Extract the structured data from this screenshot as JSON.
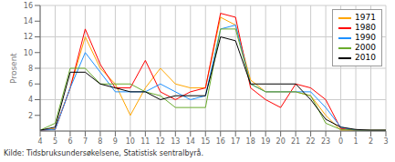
{
  "chart_data": {
    "type": "line",
    "ylabel": "Prosent",
    "source": "Kilde: Tidsbruksundersøkelsene, Statistisk sentralbyrå.",
    "categories": [
      "4",
      "5",
      "6",
      "7",
      "8",
      "9",
      "10",
      "11",
      "12",
      "13",
      "14",
      "15",
      "16",
      "17",
      "18",
      "19",
      "20",
      "21",
      "22",
      "23",
      "0",
      "1",
      "2",
      "3"
    ],
    "series": [
      {
        "name": "1971",
        "color": "#FFA500",
        "values": [
          0.1,
          0.3,
          5.5,
          12.0,
          8.0,
          6.0,
          2.0,
          5.5,
          8.0,
          6.0,
          5.5,
          5.5,
          14.5,
          13.5,
          6.5,
          5.0,
          5.0,
          5.0,
          4.5,
          2.0,
          0.1,
          0.1,
          0.1,
          0.1
        ]
      },
      {
        "name": "1980",
        "color": "#FF0000",
        "values": [
          0.1,
          0.2,
          5.5,
          13.0,
          8.5,
          5.5,
          5.5,
          9.0,
          5.0,
          4.0,
          5.0,
          5.5,
          15.0,
          14.5,
          5.5,
          4.0,
          3.0,
          6.0,
          5.5,
          4.0,
          0.3,
          0.1,
          0.1,
          0.1
        ]
      },
      {
        "name": "1990",
        "color": "#1E90FF",
        "values": [
          0.1,
          0.2,
          5.5,
          10.0,
          7.5,
          5.0,
          5.0,
          5.0,
          6.0,
          5.0,
          4.0,
          4.5,
          13.0,
          13.5,
          6.0,
          5.0,
          5.0,
          5.0,
          5.0,
          3.0,
          0.5,
          0.1,
          0.1,
          0.1
        ]
      },
      {
        "name": "2000",
        "color": "#6AAB2E",
        "values": [
          0.1,
          1.0,
          8.0,
          8.0,
          6.0,
          6.0,
          6.0,
          5.0,
          4.5,
          3.0,
          3.0,
          3.0,
          13.0,
          13.0,
          6.0,
          5.0,
          5.0,
          5.0,
          4.5,
          1.0,
          0.2,
          0.1,
          0.1,
          0.1
        ]
      },
      {
        "name": "2010",
        "color": "#000000",
        "values": [
          0.1,
          0.5,
          7.5,
          7.5,
          6.0,
          5.5,
          5.0,
          5.0,
          4.0,
          4.5,
          4.5,
          4.5,
          12.0,
          11.5,
          6.0,
          6.0,
          6.0,
          6.0,
          4.0,
          1.5,
          0.5,
          0.2,
          0.1,
          0.1
        ]
      }
    ],
    "ylim": [
      0,
      16
    ],
    "yticks": [
      2,
      4,
      6,
      8,
      10,
      12,
      14,
      16
    ],
    "grid": true,
    "legend": "upper right"
  }
}
